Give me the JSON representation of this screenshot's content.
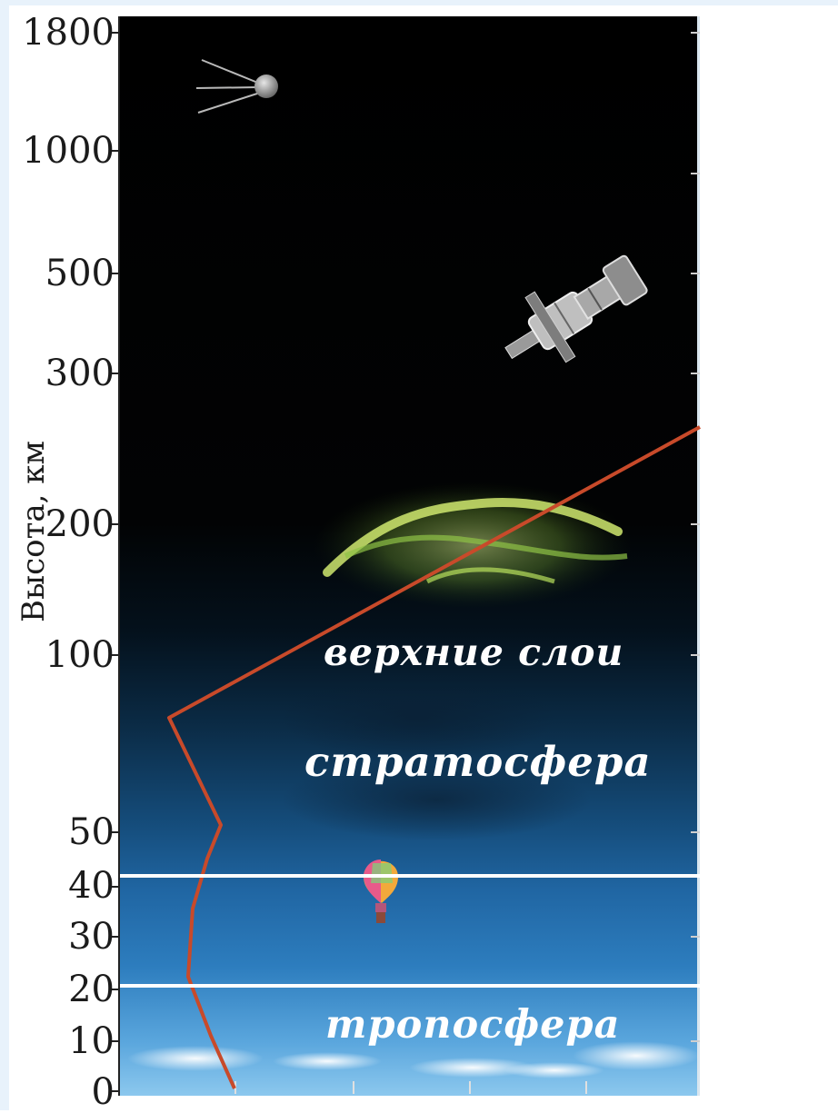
{
  "axis": {
    "title": "Высота, км",
    "ticks": [
      "1800",
      "1000",
      "500",
      "300",
      "200",
      "100",
      "50",
      "40",
      "30",
      "20",
      "10",
      "0"
    ]
  },
  "layers": {
    "upper": "верхние слои",
    "stratosphere": "стратосфера",
    "troposphere": "тропосфера"
  },
  "icons": [
    "satellite-icon",
    "space-station-icon",
    "aurora-icon",
    "hot-air-balloon-icon",
    "clouds-icon"
  ],
  "colors": {
    "temperature_line": "#c84a2a",
    "boundary_line": "#ffffff"
  }
}
